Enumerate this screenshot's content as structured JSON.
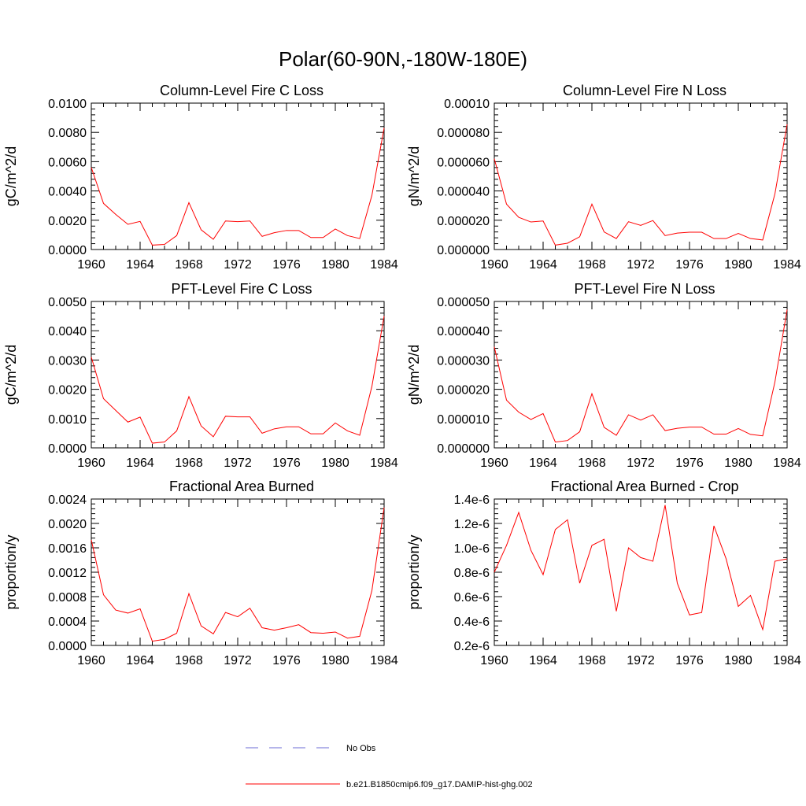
{
  "title": "Polar(60-90N,-180W-180E)",
  "colors": {
    "model": "#ff0000",
    "obs": "#6b6bd6",
    "axis": "#000000"
  },
  "legend": {
    "obs_label": "No Obs",
    "model_label": "b.e21.B1850cmip6.f09_g17.DAMIP-hist-ghg.002"
  },
  "chart_data": [
    {
      "type": "line",
      "title": "Column-Level Fire C Loss",
      "ylabel": "gC/m^2/d",
      "xlim": [
        1960,
        1984
      ],
      "ylim": [
        0,
        0.01
      ],
      "xticks": [
        1960,
        1964,
        1968,
        1972,
        1976,
        1980,
        1984
      ],
      "yticks": [
        0,
        0.002,
        0.004,
        0.006,
        0.008,
        0.01
      ],
      "ytick_labels": [
        "0.0000",
        "0.0020",
        "0.0040",
        "0.0060",
        "0.0080",
        "0.0100"
      ],
      "x": [
        1960,
        1961,
        1962,
        1963,
        1964,
        1965,
        1966,
        1967,
        1968,
        1969,
        1970,
        1971,
        1972,
        1973,
        1974,
        1975,
        1976,
        1977,
        1978,
        1979,
        1980,
        1981,
        1982,
        1983,
        1984
      ],
      "series": [
        {
          "values": [
            0.0056,
            0.00315,
            0.0024,
            0.00172,
            0.00192,
            0.0003,
            0.00035,
            0.00095,
            0.0032,
            0.00135,
            0.0007,
            0.00195,
            0.0019,
            0.00195,
            0.0009,
            0.00115,
            0.0013,
            0.0013,
            0.00082,
            0.00082,
            0.0014,
            0.00095,
            0.00075,
            0.0037,
            0.0083
          ]
        }
      ]
    },
    {
      "type": "line",
      "title": "Column-Level Fire N Loss",
      "ylabel": "gN/m^2/d",
      "xlim": [
        1960,
        1984
      ],
      "ylim": [
        0,
        0.0001
      ],
      "xticks": [
        1960,
        1964,
        1968,
        1972,
        1976,
        1980,
        1984
      ],
      "yticks": [
        0,
        2e-05,
        4e-05,
        6e-05,
        8e-05,
        0.0001
      ],
      "ytick_labels": [
        "0.000000",
        "0.000020",
        "0.000040",
        "0.000060",
        "0.000080",
        "0.00010"
      ],
      "x": [
        1960,
        1961,
        1962,
        1963,
        1964,
        1965,
        1966,
        1967,
        1968,
        1969,
        1970,
        1971,
        1972,
        1973,
        1974,
        1975,
        1976,
        1977,
        1978,
        1979,
        1980,
        1981,
        1982,
        1983,
        1984
      ],
      "series": [
        {
          "values": [
            6.2e-05,
            3.1e-05,
            2.2e-05,
            1.88e-05,
            1.95e-05,
            3e-06,
            4.3e-06,
            8.7e-06,
            3.1e-05,
            1.2e-05,
            7.5e-06,
            1.9e-05,
            1.65e-05,
            1.98e-05,
            9.5e-06,
            1.12e-05,
            1.18e-05,
            1.18e-05,
            7.5e-06,
            7.5e-06,
            1.1e-05,
            7.5e-06,
            6.5e-06,
            3.8e-05,
            8.55e-05
          ]
        }
      ]
    },
    {
      "type": "line",
      "title": "PFT-Level Fire C Loss",
      "ylabel": "gC/m^2/d",
      "xlim": [
        1960,
        1984
      ],
      "ylim": [
        0,
        0.005
      ],
      "xticks": [
        1960,
        1964,
        1968,
        1972,
        1976,
        1980,
        1984
      ],
      "yticks": [
        0,
        0.001,
        0.002,
        0.003,
        0.004,
        0.005
      ],
      "ytick_labels": [
        "0.0000",
        "0.0010",
        "0.0020",
        "0.0030",
        "0.0040",
        "0.0050"
      ],
      "x": [
        1960,
        1961,
        1962,
        1963,
        1964,
        1965,
        1966,
        1967,
        1968,
        1969,
        1970,
        1971,
        1972,
        1973,
        1974,
        1975,
        1976,
        1977,
        1978,
        1979,
        1980,
        1981,
        1982,
        1983,
        1984
      ],
      "series": [
        {
          "values": [
            0.0031,
            0.00168,
            0.00128,
            0.00088,
            0.00105,
            0.00016,
            0.0002,
            0.00058,
            0.00175,
            0.00075,
            0.00038,
            0.00108,
            0.00106,
            0.00106,
            0.0005,
            0.00065,
            0.00072,
            0.00072,
            0.00048,
            0.00048,
            0.00085,
            0.00058,
            0.00043,
            0.0021,
            0.0045
          ]
        }
      ]
    },
    {
      "type": "line",
      "title": "PFT-Level Fire N Loss",
      "ylabel": "gN/m^2/d",
      "xlim": [
        1960,
        1984
      ],
      "ylim": [
        0,
        5e-05
      ],
      "xticks": [
        1960,
        1964,
        1968,
        1972,
        1976,
        1980,
        1984
      ],
      "yticks": [
        0,
        1e-05,
        2e-05,
        3e-05,
        4e-05,
        5e-05
      ],
      "ytick_labels": [
        "0.000000",
        "0.000010",
        "0.000020",
        "0.000030",
        "0.000040",
        "0.000050"
      ],
      "x": [
        1960,
        1961,
        1962,
        1963,
        1964,
        1965,
        1966,
        1967,
        1968,
        1969,
        1970,
        1971,
        1972,
        1973,
        1974,
        1975,
        1976,
        1977,
        1978,
        1979,
        1980,
        1981,
        1982,
        1983,
        1984
      ],
      "series": [
        {
          "values": [
            3.45e-05,
            1.63e-05,
            1.22e-05,
            9.7e-06,
            1.17e-05,
            2e-06,
            2.5e-06,
            5.5e-06,
            1.85e-05,
            7e-06,
            4.3e-06,
            1.13e-05,
            9.5e-06,
            1.13e-05,
            5.9e-06,
            6.7e-06,
            7.1e-06,
            7.1e-06,
            4.7e-06,
            4.7e-06,
            6.6e-06,
            4.6e-06,
            4.1e-06,
            2.25e-05,
            4.72e-05
          ]
        }
      ]
    },
    {
      "type": "line",
      "title": "Fractional Area Burned",
      "ylabel": "proportion/y",
      "xlim": [
        1960,
        1984
      ],
      "ylim": [
        0,
        0.0024
      ],
      "xticks": [
        1960,
        1964,
        1968,
        1972,
        1976,
        1980,
        1984
      ],
      "yticks": [
        0,
        0.0004,
        0.0008,
        0.0012,
        0.0016,
        0.002,
        0.0024
      ],
      "ytick_labels": [
        "0.0000",
        "0.0004",
        "0.0008",
        "0.0012",
        "0.0016",
        "0.0020",
        "0.0024"
      ],
      "x": [
        1960,
        1961,
        1962,
        1963,
        1964,
        1965,
        1966,
        1967,
        1968,
        1969,
        1970,
        1971,
        1972,
        1973,
        1974,
        1975,
        1976,
        1977,
        1978,
        1979,
        1980,
        1981,
        1982,
        1983,
        1984
      ],
      "series": [
        {
          "values": [
            0.00173,
            0.00083,
            0.00058,
            0.00053,
            0.0006,
            7e-05,
            0.0001,
            0.0002,
            0.00085,
            0.00032,
            0.00019,
            0.00054,
            0.00047,
            0.00061,
            0.00029,
            0.00025,
            0.00029,
            0.00034,
            0.00021,
            0.0002,
            0.00022,
            0.00012,
            0.00015,
            0.0009,
            0.00226
          ]
        }
      ]
    },
    {
      "type": "line",
      "title": "Fractional Area Burned - Crop",
      "ylabel": "proportion/y",
      "xlim": [
        1960,
        1984
      ],
      "ylim": [
        2e-07,
        1.4e-06
      ],
      "xticks": [
        1960,
        1964,
        1968,
        1972,
        1976,
        1980,
        1984
      ],
      "yticks": [
        2e-07,
        4e-07,
        6e-07,
        8e-07,
        1e-06,
        1.2e-06,
        1.4e-06
      ],
      "ytick_labels": [
        "0.2e-6",
        "0.4e-6",
        "0.6e-6",
        "0.8e-6",
        "1.0e-6",
        "1.2e-6",
        "1.4e-6"
      ],
      "x": [
        1960,
        1961,
        1962,
        1963,
        1964,
        1965,
        1966,
        1967,
        1968,
        1969,
        1970,
        1971,
        1972,
        1973,
        1974,
        1975,
        1976,
        1977,
        1978,
        1979,
        1980,
        1981,
        1982,
        1983,
        1984
      ],
      "series": [
        {
          "values": [
            8e-07,
            1.02e-06,
            1.29e-06,
            9.8e-07,
            7.8e-07,
            1.15e-06,
            1.23e-06,
            7.1e-07,
            1.02e-06,
            1.07e-06,
            4.8e-07,
            1e-06,
            9.2e-07,
            8.9e-07,
            1.35e-06,
            7.1e-07,
            4.5e-07,
            4.7e-07,
            1.18e-06,
            9.1e-07,
            5.2e-07,
            6.1e-07,
            3.3e-07,
            8.9e-07,
            9.1e-07
          ]
        }
      ]
    }
  ]
}
